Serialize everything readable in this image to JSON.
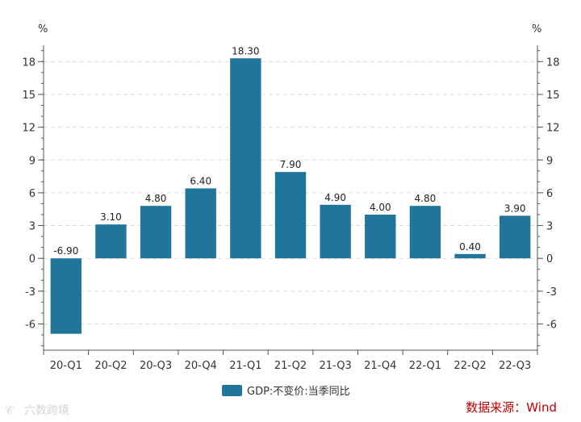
{
  "chart_data": {
    "type": "bar",
    "categories": [
      "20-Q1",
      "20-Q2",
      "20-Q3",
      "20-Q4",
      "21-Q1",
      "21-Q2",
      "21-Q3",
      "21-Q4",
      "22-Q1",
      "22-Q2",
      "22-Q3"
    ],
    "series": [
      {
        "name": "GDP:不变价:当季同比",
        "values": [
          -6.9,
          3.1,
          4.8,
          6.4,
          18.3,
          7.9,
          4.9,
          4.0,
          4.8,
          0.4,
          3.9
        ],
        "value_labels": [
          "-6.90",
          "3.10",
          "4.80",
          "6.40",
          "18.30",
          "7.90",
          "4.90",
          "4.00",
          "4.80",
          "0.40",
          "3.90"
        ]
      }
    ],
    "ylim": [
      -8.4,
      19.5
    ],
    "yticks": [
      -6,
      -3,
      0,
      3,
      6,
      9,
      12,
      15,
      18
    ],
    "ytick_labels": [
      "-6",
      "-3",
      "0",
      "3",
      "6",
      "9",
      "12",
      "15",
      "18"
    ],
    "y_unit_left": "%",
    "y_unit_right": "%",
    "grid": true,
    "legend_position": "bottom-center",
    "bar_color": "#21759b"
  },
  "source": "数据来源：Wind",
  "watermark": "六数跨境"
}
